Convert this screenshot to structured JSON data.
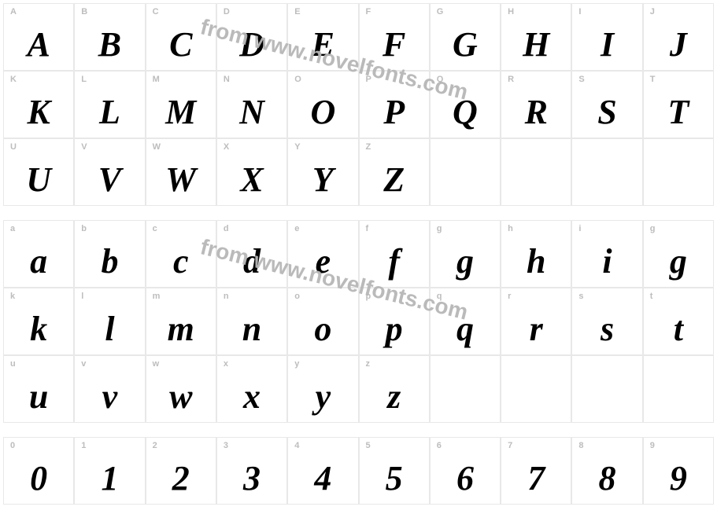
{
  "colors": {
    "background": "#ffffff",
    "border": "#e8e8e8",
    "label": "#bdbdbd",
    "glyph": "#000000",
    "watermark": "#b7b7b7"
  },
  "typography": {
    "glyph_font": "Times New Roman Bold Italic",
    "glyph_size_pt": 44,
    "label_size_pt": 11,
    "watermark_size_pt": 28
  },
  "watermark": {
    "text": "from www.novelfonts.com",
    "rotation_deg": 14
  },
  "sections": [
    {
      "id": "uppercase",
      "rows": 3,
      "cols": 10,
      "cells": [
        {
          "label": "A",
          "glyph": "A"
        },
        {
          "label": "B",
          "glyph": "B"
        },
        {
          "label": "C",
          "glyph": "C"
        },
        {
          "label": "D",
          "glyph": "D"
        },
        {
          "label": "E",
          "glyph": "E"
        },
        {
          "label": "F",
          "glyph": "F"
        },
        {
          "label": "G",
          "glyph": "G"
        },
        {
          "label": "H",
          "glyph": "H"
        },
        {
          "label": "I",
          "glyph": "I"
        },
        {
          "label": "J",
          "glyph": "J"
        },
        {
          "label": "K",
          "glyph": "K"
        },
        {
          "label": "L",
          "glyph": "L"
        },
        {
          "label": "M",
          "glyph": "M"
        },
        {
          "label": "N",
          "glyph": "N"
        },
        {
          "label": "O",
          "glyph": "O"
        },
        {
          "label": "P",
          "glyph": "P"
        },
        {
          "label": "Q",
          "glyph": "Q"
        },
        {
          "label": "R",
          "glyph": "R"
        },
        {
          "label": "S",
          "glyph": "S"
        },
        {
          "label": "T",
          "glyph": "T"
        },
        {
          "label": "U",
          "glyph": "U"
        },
        {
          "label": "V",
          "glyph": "V"
        },
        {
          "label": "W",
          "glyph": "W"
        },
        {
          "label": "X",
          "glyph": "X"
        },
        {
          "label": "Y",
          "glyph": "Y"
        },
        {
          "label": "Z",
          "glyph": "Z"
        },
        {
          "label": "",
          "glyph": ""
        },
        {
          "label": "",
          "glyph": ""
        },
        {
          "label": "",
          "glyph": ""
        },
        {
          "label": "",
          "glyph": ""
        }
      ]
    },
    {
      "id": "lowercase",
      "rows": 3,
      "cols": 10,
      "cells": [
        {
          "label": "a",
          "glyph": "a"
        },
        {
          "label": "b",
          "glyph": "b"
        },
        {
          "label": "c",
          "glyph": "c"
        },
        {
          "label": "d",
          "glyph": "d"
        },
        {
          "label": "e",
          "glyph": "e"
        },
        {
          "label": "f",
          "glyph": "f"
        },
        {
          "label": "g",
          "glyph": "g"
        },
        {
          "label": "h",
          "glyph": "h"
        },
        {
          "label": "i",
          "glyph": "i"
        },
        {
          "label": "g",
          "glyph": "g"
        },
        {
          "label": "k",
          "glyph": "k"
        },
        {
          "label": "l",
          "glyph": "l"
        },
        {
          "label": "m",
          "glyph": "m"
        },
        {
          "label": "n",
          "glyph": "n"
        },
        {
          "label": "o",
          "glyph": "o"
        },
        {
          "label": "p",
          "glyph": "p"
        },
        {
          "label": "q",
          "glyph": "q"
        },
        {
          "label": "r",
          "glyph": "r"
        },
        {
          "label": "s",
          "glyph": "s"
        },
        {
          "label": "t",
          "glyph": "t"
        },
        {
          "label": "u",
          "glyph": "u"
        },
        {
          "label": "v",
          "glyph": "v"
        },
        {
          "label": "w",
          "glyph": "w"
        },
        {
          "label": "x",
          "glyph": "x"
        },
        {
          "label": "y",
          "glyph": "y"
        },
        {
          "label": "z",
          "glyph": "z"
        },
        {
          "label": "",
          "glyph": ""
        },
        {
          "label": "",
          "glyph": ""
        },
        {
          "label": "",
          "glyph": ""
        },
        {
          "label": "",
          "glyph": ""
        }
      ]
    },
    {
      "id": "digits",
      "rows": 1,
      "cols": 10,
      "cells": [
        {
          "label": "0",
          "glyph": "0"
        },
        {
          "label": "1",
          "glyph": "1"
        },
        {
          "label": "2",
          "glyph": "2"
        },
        {
          "label": "3",
          "glyph": "3"
        },
        {
          "label": "4",
          "glyph": "4"
        },
        {
          "label": "5",
          "glyph": "5"
        },
        {
          "label": "6",
          "glyph": "6"
        },
        {
          "label": "7",
          "glyph": "7"
        },
        {
          "label": "8",
          "glyph": "8"
        },
        {
          "label": "9",
          "glyph": "9"
        }
      ]
    }
  ]
}
